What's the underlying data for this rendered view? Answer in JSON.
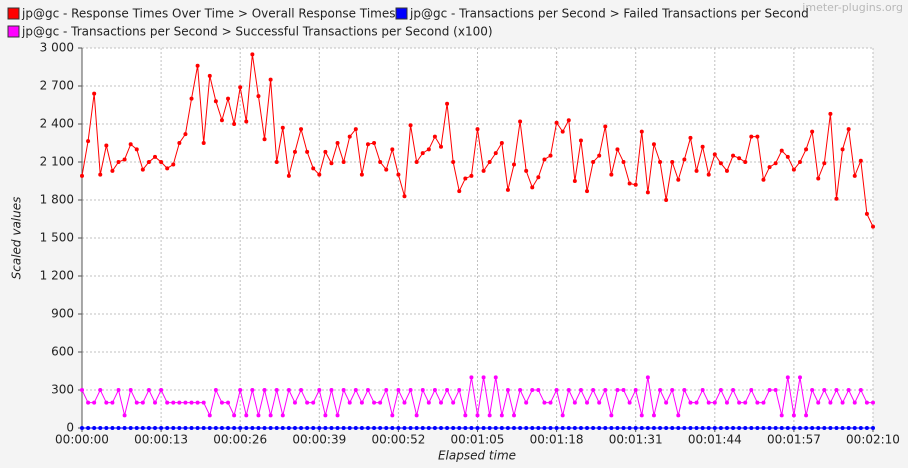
{
  "chart_data": {
    "type": "line",
    "watermark": "jmeter-plugins.org",
    "ylabel": "Scaled values",
    "xlabel": "Elapsed time",
    "xlim": [
      0,
      130
    ],
    "ylim": [
      0,
      3000
    ],
    "grid": true,
    "legend": "top",
    "xticks": [
      {
        "value": 0,
        "label": "00:00:00"
      },
      {
        "value": 13,
        "label": "00:00:13"
      },
      {
        "value": 26,
        "label": "00:00:26"
      },
      {
        "value": 39,
        "label": "00:00:39"
      },
      {
        "value": 52,
        "label": "00:00:52"
      },
      {
        "value": 65,
        "label": "00:01:05"
      },
      {
        "value": 78,
        "label": "00:01:18"
      },
      {
        "value": 91,
        "label": "00:01:31"
      },
      {
        "value": 104,
        "label": "00:01:44"
      },
      {
        "value": 117,
        "label": "00:01:57"
      },
      {
        "value": 130,
        "label": "00:02:10"
      }
    ],
    "yticks": [
      0,
      300,
      600,
      900,
      {
        "value": 1200,
        "label": "1 200"
      },
      {
        "value": 1500,
        "label": "1 500"
      },
      {
        "value": 1800,
        "label": "1 800"
      },
      {
        "value": 2100,
        "label": "2 100"
      },
      {
        "value": 2400,
        "label": "2 400"
      },
      {
        "value": 2700,
        "label": "2 700"
      },
      {
        "value": 3000,
        "label": "3 000"
      }
    ],
    "x": [
      0,
      1,
      2,
      3,
      4,
      5,
      6,
      7,
      8,
      9,
      10,
      11,
      12,
      13,
      14,
      15,
      16,
      17,
      18,
      19,
      20,
      21,
      22,
      23,
      24,
      25,
      26,
      27,
      28,
      29,
      30,
      31,
      32,
      33,
      34,
      35,
      36,
      37,
      38,
      39,
      40,
      41,
      42,
      43,
      44,
      45,
      46,
      47,
      48,
      49,
      50,
      51,
      52,
      53,
      54,
      55,
      56,
      57,
      58,
      59,
      60,
      61,
      62,
      63,
      64,
      65,
      66,
      67,
      68,
      69,
      70,
      71,
      72,
      73,
      74,
      75,
      76,
      77,
      78,
      79,
      80,
      81,
      82,
      83,
      84,
      85,
      86,
      87,
      88,
      89,
      90,
      91,
      92,
      93,
      94,
      95,
      96,
      97,
      98,
      99,
      100,
      101,
      102,
      103,
      104,
      105,
      106,
      107,
      108,
      109,
      110,
      111,
      112,
      113,
      114,
      115,
      116,
      117,
      118,
      119,
      120,
      121,
      122,
      123,
      124,
      125,
      126,
      127,
      128,
      129,
      130
    ],
    "series": [
      {
        "name": "jp@gc - Response Times Over Time > Overall Response Times",
        "color": "#ff0000",
        "values": [
          1990,
          2265,
          2640,
          2000,
          2230,
          2030,
          2100,
          2120,
          2240,
          2200,
          2040,
          2100,
          2140,
          2100,
          2050,
          2080,
          2250,
          2320,
          2600,
          2860,
          2250,
          2780,
          2580,
          2430,
          2600,
          2400,
          2690,
          2420,
          2950,
          2620,
          2280,
          2750,
          2100,
          2370,
          1990,
          2180,
          2360,
          2180,
          2050,
          2000,
          2180,
          2090,
          2250,
          2100,
          2300,
          2360,
          2000,
          2240,
          2250,
          2100,
          2040,
          2200,
          2000,
          1830,
          2390,
          2100,
          2170,
          2200,
          2300,
          2220,
          2560,
          2100,
          1870,
          1970,
          1990,
          2360,
          2030,
          2100,
          2170,
          2250,
          1880,
          2080,
          2420,
          2030,
          1900,
          1980,
          2120,
          2150,
          2410,
          2340,
          2430,
          1950,
          2270,
          1870,
          2100,
          2150,
          2380,
          2000,
          2200,
          2100,
          1930,
          1920,
          2340,
          1860,
          2240,
          2100,
          1800,
          2100,
          1960,
          2120,
          2290,
          2030,
          2220,
          2000,
          2160,
          2090,
          2030,
          2150,
          2130,
          2100,
          2300,
          2300,
          1960,
          2060,
          2090,
          2190,
          2140,
          2040,
          2100,
          2200,
          2340,
          1970,
          2090,
          2480,
          1810,
          2200,
          2360,
          1990,
          2110,
          1690,
          1590
        ]
      },
      {
        "name": "jp@gc - Transactions per Second > Failed Transactions per Second",
        "color": "#0000ff",
        "values": [
          0,
          0,
          0,
          0,
          0,
          0,
          0,
          0,
          0,
          0,
          0,
          0,
          0,
          0,
          0,
          0,
          0,
          0,
          0,
          0,
          0,
          0,
          0,
          0,
          0,
          0,
          0,
          0,
          0,
          0,
          0,
          0,
          0,
          0,
          0,
          0,
          0,
          0,
          0,
          0,
          0,
          0,
          0,
          0,
          0,
          0,
          0,
          0,
          0,
          0,
          0,
          0,
          0,
          0,
          0,
          0,
          0,
          0,
          0,
          0,
          0,
          0,
          0,
          0,
          0,
          0,
          0,
          0,
          0,
          0,
          0,
          0,
          0,
          0,
          0,
          0,
          0,
          0,
          0,
          0,
          0,
          0,
          0,
          0,
          0,
          0,
          0,
          0,
          0,
          0,
          0,
          0,
          0,
          0,
          0,
          0,
          0,
          0,
          0,
          0,
          0,
          0,
          0,
          0,
          0,
          0,
          0,
          0,
          0,
          0,
          0,
          0,
          0,
          0,
          0,
          0,
          0,
          0,
          0,
          0,
          0,
          0,
          0,
          0,
          0,
          0,
          0,
          0,
          0,
          0,
          0
        ]
      },
      {
        "name": "jp@gc - Transactions per Second > Successful Transactions per Second (x100)",
        "color": "#ff00ff",
        "values": [
          300,
          200,
          200,
          300,
          200,
          200,
          300,
          100,
          300,
          200,
          200,
          300,
          200,
          300,
          200,
          200,
          200,
          200,
          200,
          200,
          200,
          100,
          300,
          200,
          200,
          100,
          300,
          100,
          300,
          100,
          300,
          100,
          300,
          100,
          300,
          200,
          300,
          200,
          200,
          300,
          100,
          300,
          100,
          300,
          200,
          300,
          200,
          300,
          200,
          200,
          300,
          100,
          300,
          200,
          300,
          100,
          300,
          200,
          300,
          200,
          300,
          200,
          300,
          100,
          400,
          100,
          400,
          100,
          400,
          100,
          300,
          100,
          300,
          200,
          300,
          300,
          200,
          200,
          300,
          100,
          300,
          200,
          300,
          200,
          300,
          200,
          300,
          100,
          300,
          300,
          200,
          300,
          100,
          400,
          100,
          300,
          200,
          300,
          100,
          300,
          200,
          200,
          300,
          200,
          200,
          300,
          200,
          300,
          200,
          200,
          300,
          200,
          200,
          300,
          300,
          100,
          400,
          100,
          400,
          100,
          300,
          200,
          300,
          200,
          300,
          200,
          300,
          200,
          300,
          200,
          200
        ]
      }
    ]
  }
}
